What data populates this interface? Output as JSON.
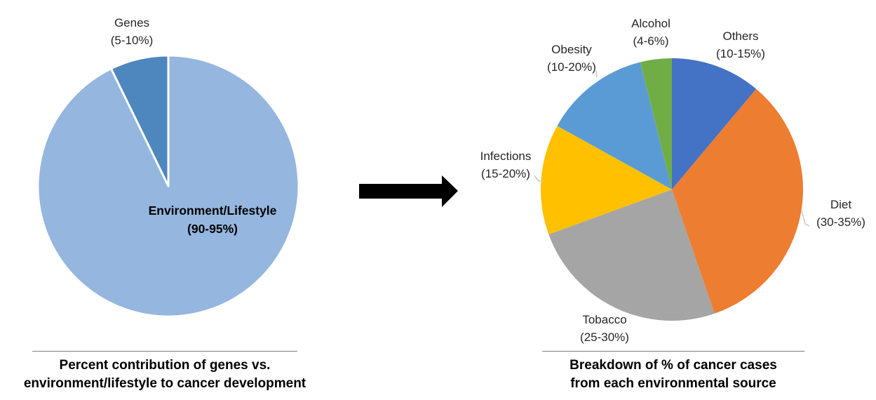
{
  "figure": {
    "background_color": "#ffffff",
    "text_color": "#262626",
    "caption_rule_color": "#7f7f7f"
  },
  "arrow": {
    "name": "transition-arrow",
    "color": "#000000"
  },
  "chart_data": [
    {
      "type": "pie",
      "title": "Percent contribution of genes vs. environment/lifestyle to cancer development",
      "title_lines": [
        "Percent contribution of genes vs.",
        "environment/lifestyle to cancer development"
      ],
      "start_angle_deg": 0,
      "slice_border_color": "#ffffff",
      "legend": "none",
      "slices": [
        {
          "label": "Environment/Lifestyle",
          "range": "(90-95%)",
          "range_pct": [
            90,
            95
          ],
          "angle_deg": 334,
          "color": "#95B6DE",
          "label_placement": "inside"
        },
        {
          "label": "Genes",
          "range": "(5-10%)",
          "range_pct": [
            5,
            10
          ],
          "angle_deg": 26,
          "color": "#4E86BE",
          "label_placement": "outside"
        }
      ]
    },
    {
      "type": "pie",
      "title": "Breakdown of % of cancer cases from each environmental source",
      "title_lines": [
        "Breakdown of % of cancer cases",
        "from each environmental source"
      ],
      "start_angle_deg": 0,
      "slice_border_color": "",
      "legend": "none",
      "slices": [
        {
          "label": "Others",
          "range": "(10-15%)",
          "range_pct": [
            10,
            15
          ],
          "angle_deg": 40,
          "color": "#4472C4",
          "label_placement": "outside"
        },
        {
          "label": "Diet",
          "range": "(30-35%)",
          "range_pct": [
            30,
            35
          ],
          "angle_deg": 121,
          "color": "#ED7D31",
          "label_placement": "outside"
        },
        {
          "label": "Tobacco",
          "range": "(25-30%)",
          "range_pct": [
            25,
            30
          ],
          "angle_deg": 89,
          "color": "#A5A5A5",
          "label_placement": "outside"
        },
        {
          "label": "Infections",
          "range": "(15-20%)",
          "range_pct": [
            15,
            20
          ],
          "angle_deg": 49,
          "color": "#FFC000",
          "label_placement": "outside"
        },
        {
          "label": "Obesity",
          "range": "(10-20%)",
          "range_pct": [
            10,
            20
          ],
          "angle_deg": 47,
          "color": "#5B9BD5",
          "label_placement": "outside"
        },
        {
          "label": "Alcohol",
          "range": "(4-6%)",
          "range_pct": [
            4,
            6
          ],
          "angle_deg": 14,
          "color": "#70AD47",
          "label_placement": "outside"
        }
      ]
    }
  ]
}
